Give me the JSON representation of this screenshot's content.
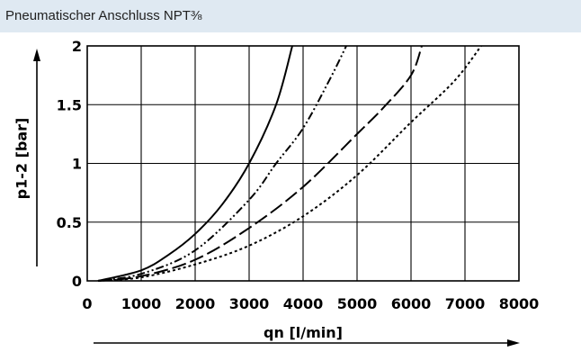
{
  "header": {
    "title": "Pneumatischer Anschluss NPT⅜"
  },
  "chart_data": {
    "type": "line",
    "xlabel": "qn [l/min]",
    "ylabel": "p1-2 [bar]",
    "xlim": [
      0,
      8000
    ],
    "ylim": [
      0,
      2
    ],
    "x_ticks": [
      "0",
      "1000",
      "2000",
      "3000",
      "4000",
      "5000",
      "6000",
      "7000",
      "8000"
    ],
    "y_ticks": [
      "0",
      "0.5",
      "1",
      "1.5",
      "2"
    ],
    "grid": true,
    "series": [
      {
        "style": "solid",
        "x": [
          200,
          1000,
          1500,
          2000,
          2500,
          3000,
          3500,
          3800
        ],
        "y": [
          0,
          0.09,
          0.22,
          0.4,
          0.65,
          1.0,
          1.5,
          2.0
        ]
      },
      {
        "style": "dash-dot-dot",
        "x": [
          200,
          1000,
          2000,
          3000,
          3500,
          4000,
          4500,
          4800
        ],
        "y": [
          0,
          0.06,
          0.26,
          0.69,
          1.0,
          1.3,
          1.72,
          2.0
        ]
      },
      {
        "style": "long-dash",
        "x": [
          200,
          1000,
          2000,
          3000,
          4000,
          5000,
          5500,
          6000,
          6200
        ],
        "y": [
          0,
          0.04,
          0.18,
          0.45,
          0.8,
          1.25,
          1.48,
          1.75,
          2.0
        ]
      },
      {
        "style": "dotted",
        "x": [
          200,
          1000,
          2000,
          3000,
          4000,
          5000,
          6000,
          6800,
          7300
        ],
        "y": [
          0,
          0.03,
          0.14,
          0.3,
          0.55,
          0.9,
          1.35,
          1.7,
          2.0
        ]
      }
    ]
  }
}
